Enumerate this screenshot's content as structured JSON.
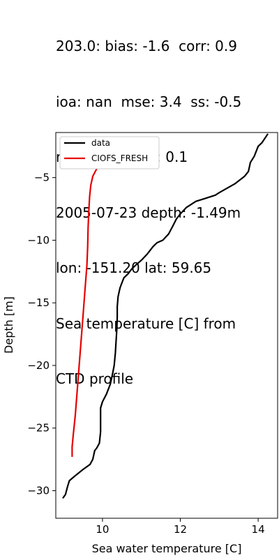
{
  "title_lines": [
    "203.0: bias: -1.6  corr: 0.9",
    "ioa: nan  mse: 3.4  ss: -0.5",
    "rmse: 1.9  dist: 0.1",
    "2005-07-23 depth: -1.49m",
    "lon: -151.20 lat: 59.65",
    "Sea temperature [C] from",
    "CTD profile"
  ],
  "chart_data": {
    "type": "line",
    "xlabel": "Sea water temperature [C]",
    "ylabel": "Depth [m]",
    "xlim": [
      8.8,
      14.5
    ],
    "ylim": [
      -32.2,
      -1.4
    ],
    "xticks": [
      10,
      12,
      14
    ],
    "yticks": [
      -5,
      -10,
      -15,
      -20,
      -25,
      -30
    ],
    "grid": false,
    "legend": {
      "placement": "top-left"
    },
    "series": [
      {
        "name": "data",
        "color": "#000000",
        "points": [
          [
            14.25,
            -1.5
          ],
          [
            14.1,
            -2.2
          ],
          [
            14.0,
            -2.5
          ],
          [
            13.9,
            -3.3
          ],
          [
            13.8,
            -3.8
          ],
          [
            13.75,
            -4.5
          ],
          [
            13.65,
            -4.9
          ],
          [
            13.4,
            -5.5
          ],
          [
            13.0,
            -6.2
          ],
          [
            12.9,
            -6.4
          ],
          [
            12.6,
            -6.7
          ],
          [
            12.4,
            -6.9
          ],
          [
            12.15,
            -7.4
          ],
          [
            12.0,
            -7.9
          ],
          [
            11.9,
            -8.3
          ],
          [
            11.8,
            -8.9
          ],
          [
            11.7,
            -9.5
          ],
          [
            11.55,
            -10.0
          ],
          [
            11.4,
            -10.2
          ],
          [
            11.3,
            -10.5
          ],
          [
            11.15,
            -11.1
          ],
          [
            11.0,
            -11.6
          ],
          [
            10.85,
            -12.0
          ],
          [
            10.75,
            -12.3
          ],
          [
            10.65,
            -12.7
          ],
          [
            10.55,
            -13.0
          ],
          [
            10.5,
            -13.4
          ],
          [
            10.45,
            -13.8
          ],
          [
            10.4,
            -14.5
          ],
          [
            10.38,
            -15.3
          ],
          [
            10.38,
            -16.1
          ],
          [
            10.37,
            -17.0
          ],
          [
            10.35,
            -18.0
          ],
          [
            10.33,
            -19.0
          ],
          [
            10.3,
            -20.0
          ],
          [
            10.25,
            -20.8
          ],
          [
            10.2,
            -21.5
          ],
          [
            10.1,
            -22.3
          ],
          [
            10.0,
            -22.9
          ],
          [
            9.95,
            -23.4
          ],
          [
            9.95,
            -24.3
          ],
          [
            9.95,
            -25.3
          ],
          [
            9.92,
            -26.2
          ],
          [
            9.85,
            -26.6
          ],
          [
            9.8,
            -26.8
          ],
          [
            9.75,
            -27.5
          ],
          [
            9.68,
            -27.9
          ],
          [
            9.5,
            -28.3
          ],
          [
            9.3,
            -28.8
          ],
          [
            9.15,
            -29.2
          ],
          [
            9.1,
            -29.7
          ],
          [
            9.05,
            -30.3
          ],
          [
            8.98,
            -30.6
          ]
        ]
      },
      {
        "name": "CIOFS_FRESH",
        "color": "#e60000",
        "points": [
          [
            10.1,
            -3.4
          ],
          [
            9.95,
            -3.8
          ],
          [
            9.85,
            -4.3
          ],
          [
            9.75,
            -4.9
          ],
          [
            9.7,
            -5.6
          ],
          [
            9.67,
            -6.5
          ],
          [
            9.65,
            -7.6
          ],
          [
            9.63,
            -9.0
          ],
          [
            9.62,
            -10.5
          ],
          [
            9.6,
            -12.0
          ],
          [
            9.55,
            -14.0
          ],
          [
            9.5,
            -16.0
          ],
          [
            9.45,
            -18.0
          ],
          [
            9.4,
            -20.0
          ],
          [
            9.35,
            -22.0
          ],
          [
            9.3,
            -24.0
          ],
          [
            9.25,
            -25.5
          ],
          [
            9.22,
            -26.5
          ],
          [
            9.22,
            -27.3
          ]
        ]
      }
    ]
  }
}
